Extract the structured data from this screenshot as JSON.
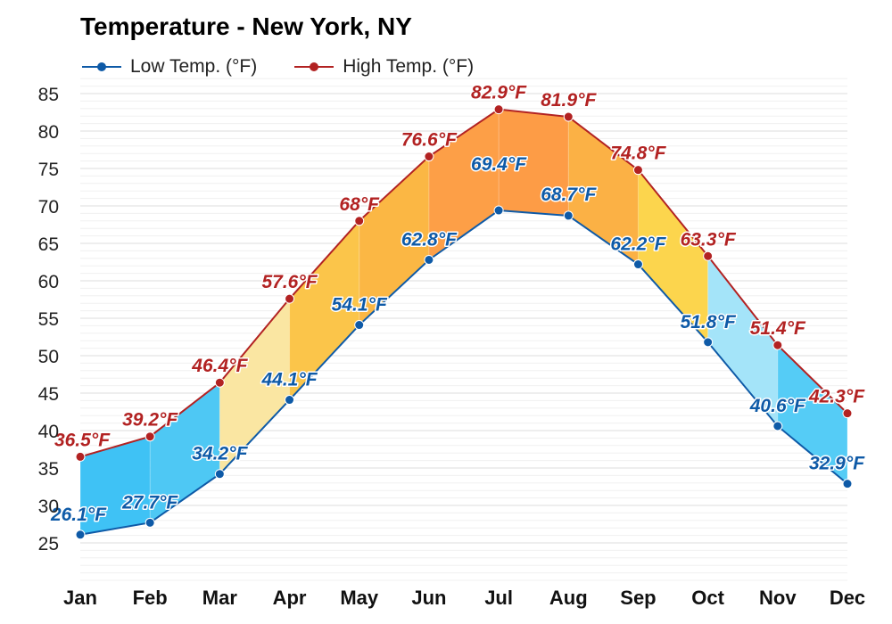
{
  "chart_data": {
    "type": "area",
    "title": "Temperature - New York, NY",
    "categories": [
      "Jan",
      "Feb",
      "Mar",
      "Apr",
      "May",
      "Jun",
      "Jul",
      "Aug",
      "Sep",
      "Oct",
      "Nov",
      "Dec"
    ],
    "series": [
      {
        "name": "Low Temp. (°F)",
        "color": "#0e5aa7",
        "values": [
          26.1,
          27.7,
          34.2,
          44.1,
          54.1,
          62.8,
          69.4,
          68.7,
          62.2,
          51.8,
          40.6,
          32.9
        ],
        "labels": [
          "26.1°F",
          "27.7°F",
          "34.2°F",
          "44.1°F",
          "54.1°F",
          "62.8°F",
          "69.4°F",
          "68.7°F",
          "62.2°F",
          "51.8°F",
          "40.6°F",
          "32.9°F"
        ]
      },
      {
        "name": "High Temp. (°F)",
        "color": "#b22222",
        "values": [
          36.5,
          39.2,
          46.4,
          57.6,
          68,
          76.6,
          82.9,
          81.9,
          74.8,
          63.3,
          51.4,
          42.3
        ],
        "labels": [
          "36.5°F",
          "39.2°F",
          "46.4°F",
          "57.6°F",
          "68°F",
          "76.6°F",
          "82.9°F",
          "81.9°F",
          "74.8°F",
          "63.3°F",
          "51.4°F",
          "42.3°F"
        ]
      }
    ],
    "segment_fills": [
      "#3fc2f5",
      "#4ec8f4",
      "#fae6a2",
      "#fbc54a",
      "#fbb744",
      "#fd9f47",
      "#fd9c46",
      "#fbb145",
      "#fcd54d",
      "#a4e4f9",
      "#55ccf6",
      "#4ccff9"
    ],
    "ylim": [
      20,
      87
    ],
    "yticks": [
      25,
      30,
      35,
      40,
      45,
      50,
      55,
      60,
      65,
      70,
      75,
      80,
      85
    ],
    "grid": true,
    "legend": "top-left"
  }
}
